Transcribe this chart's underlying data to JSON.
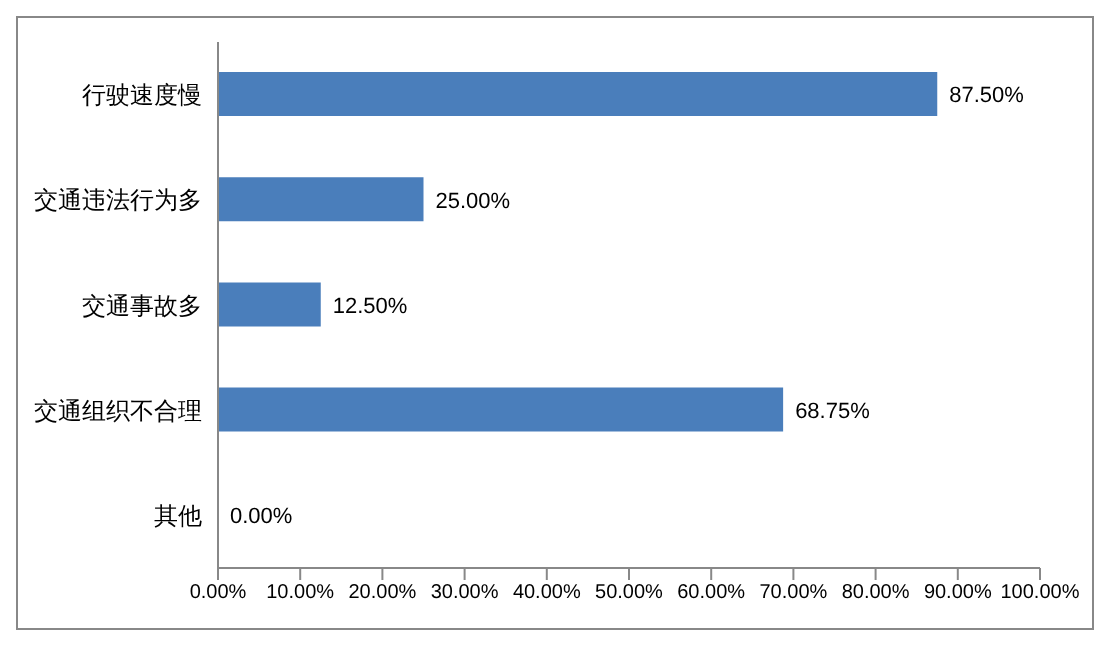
{
  "chart_data": {
    "type": "bar",
    "orientation": "horizontal",
    "categories": [
      "行驶速度慢",
      "交通违法行为多",
      "交通事故多",
      "交通组织不合理",
      "其他"
    ],
    "values": [
      87.5,
      25,
      12.5,
      68.75,
      0
    ],
    "value_labels": [
      "87.50%",
      "25.00%",
      "12.50%",
      "68.75%",
      "0.00%"
    ],
    "color": "#4a7ebb",
    "xlim": [
      0,
      100
    ],
    "xticks": [
      {
        "value": 0,
        "label": "0.00%"
      },
      {
        "value": 10,
        "label": "10.00%"
      },
      {
        "value": 20,
        "label": "20.00%"
      },
      {
        "value": 30,
        "label": "30.00%"
      },
      {
        "value": 40,
        "label": "40.00%"
      },
      {
        "value": 50,
        "label": "50.00%"
      },
      {
        "value": 60,
        "label": "60.00%"
      },
      {
        "value": 70,
        "label": "70.00%"
      },
      {
        "value": 80,
        "label": "80.00%"
      },
      {
        "value": 90,
        "label": "90.00%"
      },
      {
        "value": 100,
        "label": "100.00%"
      }
    ],
    "grid": false,
    "legend": false
  }
}
